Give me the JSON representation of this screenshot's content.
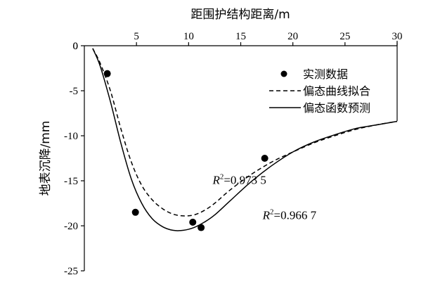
{
  "chart_data": {
    "type": "scatter",
    "xlabel": "距围护结构距离/m",
    "ylabel": "地表沉降/mm",
    "xlim": [
      0,
      30
    ],
    "ylim": [
      -25,
      0
    ],
    "x_axis_position": "top",
    "xticks": [
      5,
      10,
      15,
      20,
      25,
      30
    ],
    "yticks": [
      0,
      -5,
      -10,
      -15,
      -20,
      -25
    ],
    "origin_label": "0",
    "grid": false,
    "legend_position": "top-right",
    "series": [
      {
        "name": "实测数据",
        "kind": "scatter",
        "x": [
          2.2,
          4.9,
          10.4,
          11.2,
          17.3
        ],
        "y": [
          -3.1,
          -18.5,
          -19.6,
          -20.2,
          -12.5
        ]
      },
      {
        "name": "偏态曲线拟合",
        "kind": "dashed-line",
        "x": [
          0.8,
          1.5,
          2.5,
          3.5,
          4.5,
          5.5,
          6.5,
          7.5,
          8.5,
          9.5,
          10.5,
          11.5,
          12.5,
          14,
          16,
          18,
          20,
          22,
          24,
          26,
          28,
          30
        ],
        "y": [
          -0.3,
          -1.9,
          -5.0,
          -9.2,
          -12.9,
          -15.5,
          -17.1,
          -18.1,
          -18.7,
          -18.9,
          -18.8,
          -18.3,
          -17.5,
          -16.0,
          -14.3,
          -12.9,
          -11.8,
          -10.8,
          -10.0,
          -9.3,
          -8.8,
          -8.4
        ]
      },
      {
        "name": "偏态函数预测",
        "kind": "solid-line",
        "x": [
          0.8,
          1.5,
          2.5,
          3.5,
          4.5,
          5.5,
          6.5,
          7.5,
          8.5,
          9.5,
          10.5,
          11.5,
          12.5,
          14,
          16,
          18,
          20,
          22,
          24,
          26,
          28,
          30
        ],
        "y": [
          -0.3,
          -2.2,
          -6.2,
          -10.8,
          -14.8,
          -17.5,
          -19.2,
          -20.1,
          -20.5,
          -20.5,
          -20.2,
          -19.6,
          -18.8,
          -17.2,
          -15.1,
          -13.3,
          -11.8,
          -10.7,
          -9.9,
          -9.2,
          -8.8,
          -8.4
        ]
      }
    ],
    "annotations": [
      {
        "text": "R",
        "sup": "2",
        "rest": "=0.973 5",
        "x": 12.3,
        "y": -15.35
      },
      {
        "text": "R",
        "sup": "2",
        "rest": "=0.966 7",
        "x": 17.1,
        "y": -19.25
      }
    ]
  }
}
